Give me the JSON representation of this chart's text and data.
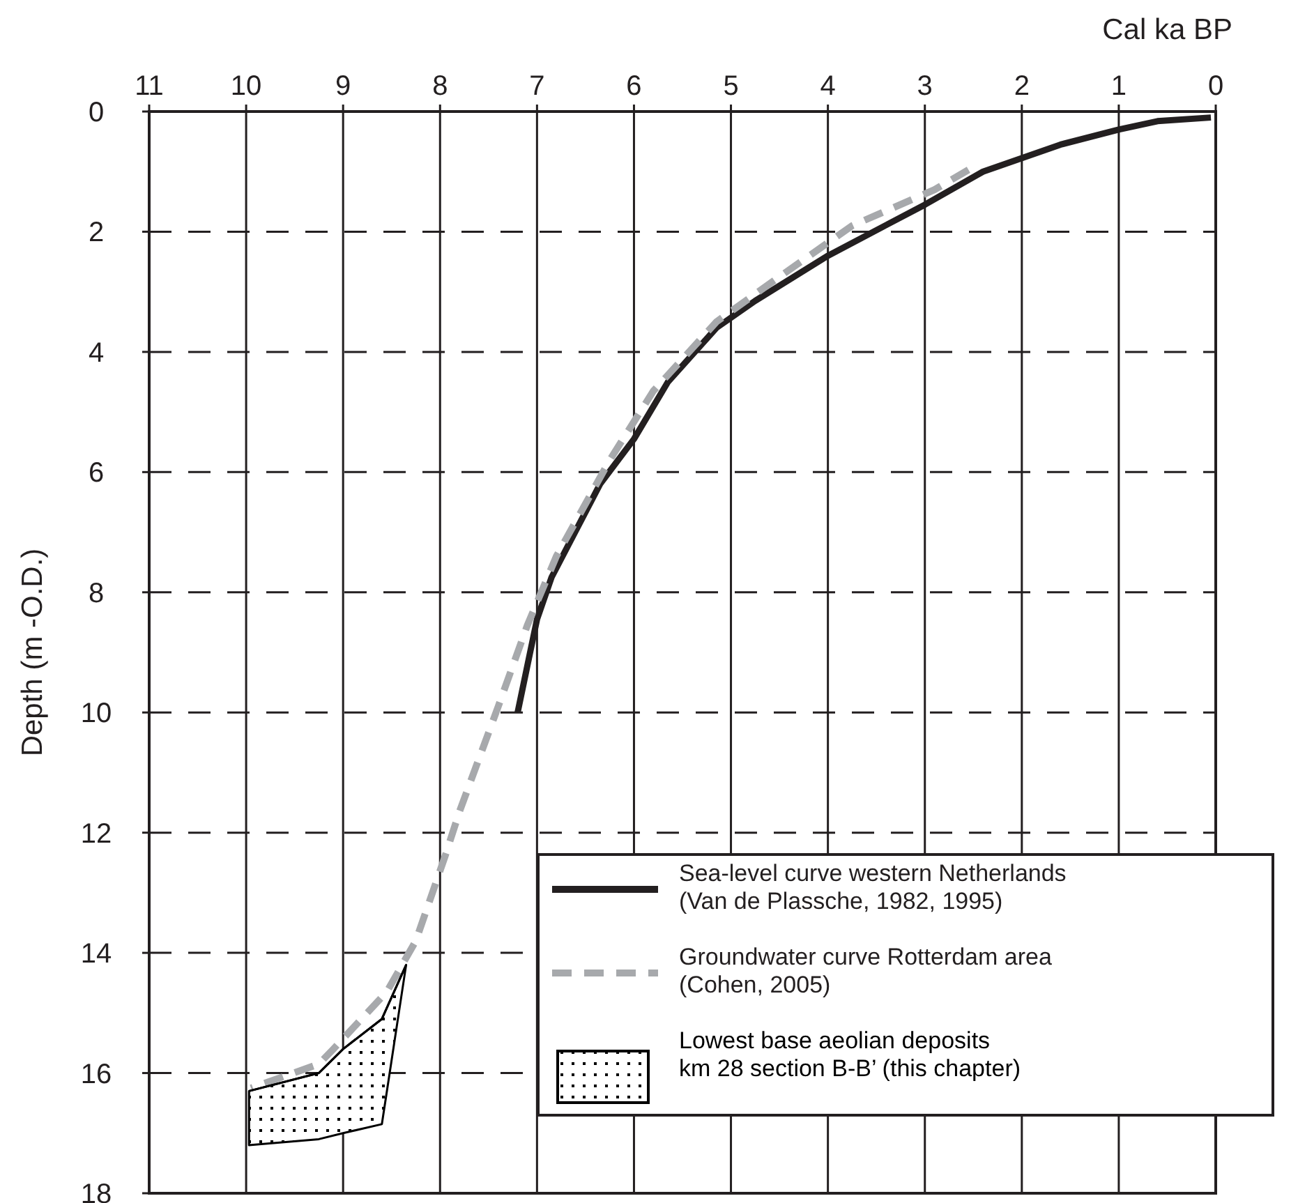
{
  "chart_data": {
    "type": "line",
    "xlabel": "Cal ka BP",
    "ylabel": "Depth (m -O.D.)",
    "xlim": [
      11,
      0
    ],
    "xticks": [
      11,
      10,
      9,
      8,
      7,
      6,
      5,
      4,
      3,
      2,
      1,
      0
    ],
    "ylim": [
      18,
      0
    ],
    "yticks": [
      0,
      2,
      4,
      6,
      8,
      10,
      12,
      14,
      16,
      18
    ],
    "grid": true,
    "legend": "bottom right",
    "series": [
      {
        "name": "Sea-level curve western Netherlands\n(Van de Plassche, 1982, 1995)",
        "color": "#231f20",
        "line_style": "solid",
        "x": [
          0.05,
          0.6,
          1.0,
          1.6,
          2.4,
          3.0,
          4.0,
          4.75,
          5.15,
          5.65,
          6.0,
          6.35,
          6.85,
          7.0,
          7.2
        ],
        "values": [
          0.1,
          0.16,
          0.3,
          0.55,
          1.0,
          1.55,
          2.4,
          3.15,
          3.6,
          4.5,
          5.45,
          6.2,
          7.75,
          8.45,
          10
        ]
      },
      {
        "name": "Groundwater curve Rotterdam area\n(Cohen, 2005)",
        "color": "#a7a9ac",
        "line_style": "dashed",
        "x": [
          2.55,
          2.9,
          3.75,
          4.5,
          5.15,
          5.8,
          6.25,
          6.8,
          7.1,
          7.4,
          7.8,
          7.95,
          8.25,
          8.55,
          9.1,
          9.25,
          9.95
        ],
        "values": [
          0.97,
          1.3,
          1.9,
          2.75,
          3.5,
          4.65,
          5.8,
          7.4,
          8.55,
          9.9,
          11.65,
          12.4,
          13.8,
          14.65,
          15.6,
          15.85,
          16.25
        ]
      },
      {
        "name": "Lowest base aeolian deposits\nkm 28 section B-B’ (this chapter)",
        "type": "line",
        "color": "#000000",
        "x": [
          9.97,
          9.25,
          9.0,
          8.6,
          8.35
        ],
        "values": [
          16.3,
          16.0,
          15.6,
          15.1,
          14.2
        ],
        "lower": [
          16.3,
          16.0,
          15.6,
          15.1,
          14.2
        ],
        "upper": [
          17.2,
          17.1,
          17.0,
          16.85,
          14.2
        ]
      }
    ]
  }
}
